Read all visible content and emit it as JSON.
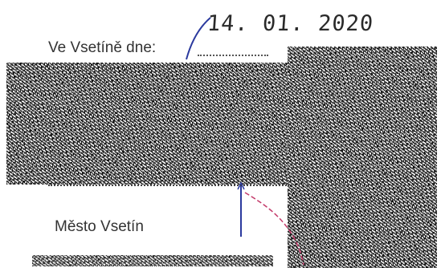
{
  "document": {
    "stamp_date": "14. 01. 2020",
    "place_label": "Ve Vsetíně dne:",
    "signatory": "Město Vsetín"
  },
  "colors": {
    "ink_blue": "#2b3a9e",
    "ink_red": "#c43a6a",
    "noise_gray": "#8a8a8a"
  }
}
